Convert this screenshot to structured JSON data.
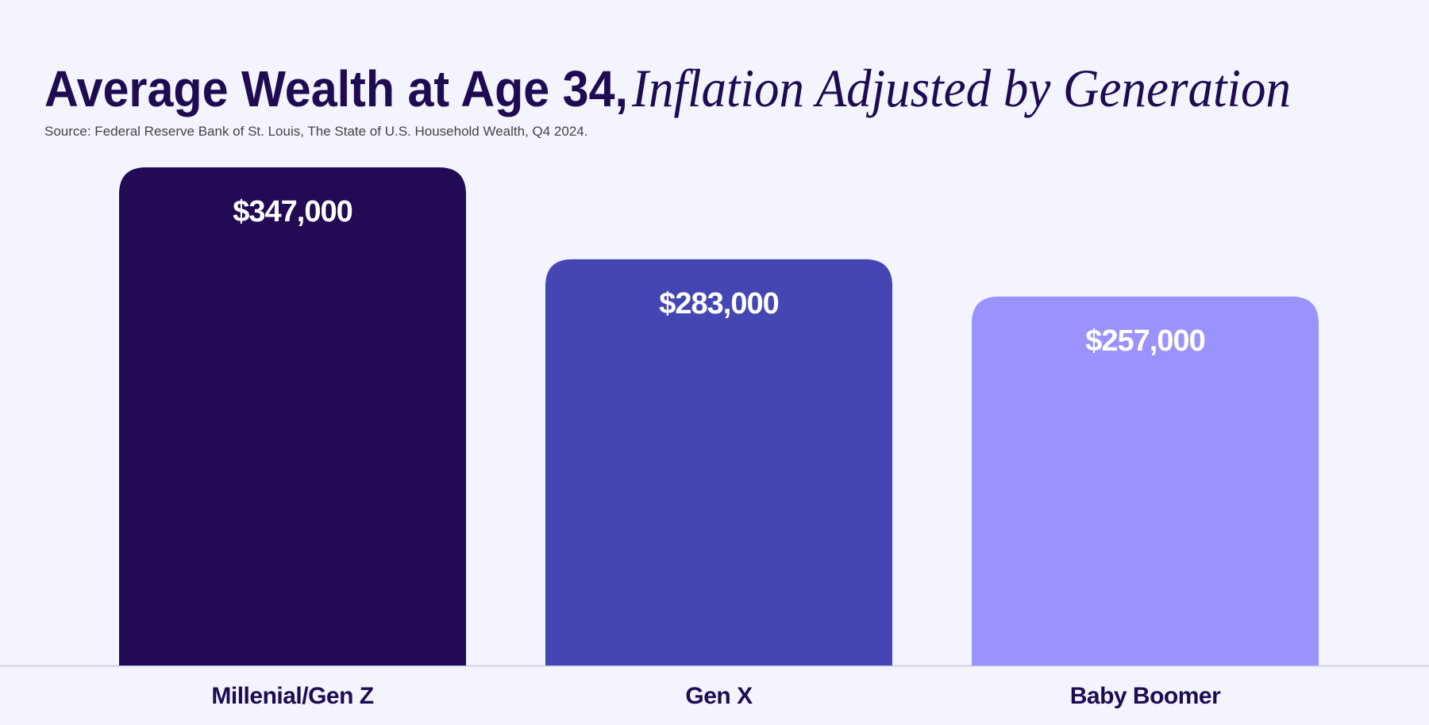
{
  "chart_data": {
    "type": "bar",
    "title": "Average Wealth at Age 34,",
    "title_italic": "Inflation Adjusted by Generation",
    "source": "Source: Federal Reserve Bank of St. Louis, The State of U.S. Household Wealth, Q4 2024.",
    "categories": [
      "Millenial/Gen Z",
      "Gen X",
      "Baby Boomer"
    ],
    "values": [
      347000,
      283000,
      257000
    ],
    "value_labels": [
      "$347,000",
      "$283,000",
      "$257,000"
    ],
    "colors": [
      "#220a55",
      "#4546b3",
      "#9b93fd"
    ]
  }
}
